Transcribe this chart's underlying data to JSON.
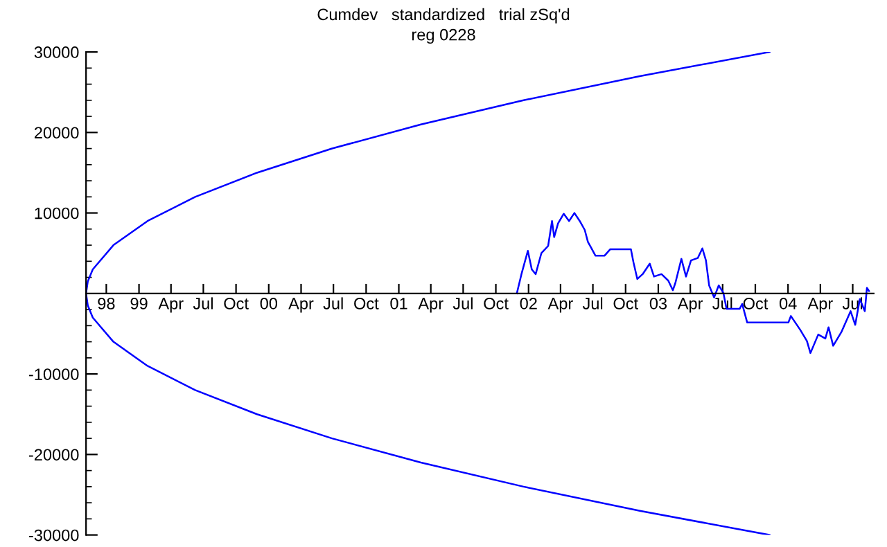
{
  "chart_data": {
    "type": "line",
    "title": "Cumdev   standardized   trial zSq'd",
    "subtitle": "reg 0228",
    "series": [
      {
        "color": "#0000ff",
        "x": [
          "2003-11-10",
          "2002-11-10",
          "2001-12-18",
          "2001-03-04",
          "2000-06-27",
          "1999-11-29",
          "1999-06-08",
          "1999-01-25",
          "1998-10-21",
          "1998-08-24",
          "1998-08-10",
          "1998-08-05",
          "1998-08-10",
          "1998-08-24",
          "1998-10-21",
          "1999-01-25",
          "1999-06-08",
          "1999-11-29",
          "2000-06-27",
          "2001-03-04",
          "2001-12-18",
          "2002-11-10",
          "2003-11-10"
        ],
        "values": [
          30000,
          27000,
          24000,
          21000,
          18000,
          15000,
          12000,
          9000,
          6000,
          3000,
          1500,
          0,
          -1500,
          -3000,
          -6000,
          -9000,
          -12000,
          -15000,
          -18000,
          -21000,
          -24000,
          -27000,
          -30000
        ]
      },
      {
        "color": "#0000ff",
        "x": [
          "2001-11-29",
          "2001-12-12",
          "2001-12-30",
          "2002-01-10",
          "2002-01-21",
          "2002-02-06",
          "2002-02-25",
          "2002-03-08",
          "2002-03-14",
          "2002-03-25",
          "2002-04-10",
          "2002-04-25",
          "2002-05-10",
          "2002-05-25",
          "2002-06-08",
          "2002-06-17",
          "2002-06-27",
          "2002-07-08",
          "2002-08-03",
          "2002-08-19",
          "2002-10-16",
          "2002-10-23",
          "2002-11-03",
          "2002-11-18",
          "2002-12-08",
          "2002-12-20",
          "2003-01-10",
          "2003-01-29",
          "2003-02-11",
          "2003-02-18",
          "2003-03-07",
          "2003-03-20",
          "2003-04-03",
          "2003-04-22",
          "2003-05-05",
          "2003-05-15",
          "2003-05-24",
          "2003-06-07",
          "2003-06-20",
          "2003-07-03",
          "2003-07-12",
          "2003-08-18",
          "2003-08-25",
          "2003-09-08",
          "2004-01-02",
          "2004-01-09",
          "2004-02-04",
          "2004-02-23",
          "2004-03-04",
          "2004-03-26",
          "2004-04-15",
          "2004-04-24",
          "2004-05-07",
          "2004-05-30",
          "2004-06-25",
          "2004-07-08",
          "2004-07-21",
          "2004-08-04",
          "2004-08-10",
          "2004-08-16"
        ],
        "values": [
          0,
          2400,
          5300,
          3000,
          2400,
          5000,
          5900,
          9000,
          7000,
          8700,
          9900,
          9000,
          10000,
          9000,
          7900,
          6400,
          5600,
          4700,
          4700,
          5500,
          5500,
          3900,
          1800,
          2400,
          3700,
          2100,
          2400,
          1600,
          400,
          1300,
          4300,
          2100,
          4100,
          4400,
          5600,
          4100,
          1000,
          -500,
          1000,
          100,
          -1900,
          -1900,
          -1300,
          -3600,
          -3600,
          -2800,
          -4500,
          -5900,
          -7400,
          -5100,
          -5600,
          -4200,
          -6500,
          -4800,
          -2200,
          -3900,
          -700,
          -2200,
          700,
          300
        ]
      }
    ],
    "xlim": [
      "1998-08-05",
      "2004-08-29"
    ],
    "xticks": [
      {
        "value": "1998-10-01",
        "label": "98"
      },
      {
        "value": "1999-01-01",
        "label": "99"
      },
      {
        "value": "1999-04-01",
        "label": "Apr"
      },
      {
        "value": "1999-07-01",
        "label": "Jul"
      },
      {
        "value": "1999-10-01",
        "label": "Oct"
      },
      {
        "value": "2000-01-01",
        "label": "00"
      },
      {
        "value": "2000-04-01",
        "label": "Apr"
      },
      {
        "value": "2000-07-01",
        "label": "Jul"
      },
      {
        "value": "2000-10-01",
        "label": "Oct"
      },
      {
        "value": "2001-01-01",
        "label": "01"
      },
      {
        "value": "2001-04-01",
        "label": "Apr"
      },
      {
        "value": "2001-07-01",
        "label": "Jul"
      },
      {
        "value": "2001-10-01",
        "label": "Oct"
      },
      {
        "value": "2002-01-01",
        "label": "02"
      },
      {
        "value": "2002-04-01",
        "label": "Apr"
      },
      {
        "value": "2002-07-01",
        "label": "Jul"
      },
      {
        "value": "2002-10-01",
        "label": "Oct"
      },
      {
        "value": "2003-01-01",
        "label": "03"
      },
      {
        "value": "2003-04-01",
        "label": "Apr"
      },
      {
        "value": "2003-07-01",
        "label": "Jul"
      },
      {
        "value": "2003-10-01",
        "label": "Oct"
      },
      {
        "value": "2004-01-01",
        "label": "04"
      },
      {
        "value": "2004-04-01",
        "label": "Apr"
      },
      {
        "value": "2004-07-01",
        "label": "Jul"
      }
    ],
    "ylim": [
      -30000,
      30000
    ],
    "yticks": [
      -30000,
      {
        "value": -28000,
        "label": null
      },
      {
        "value": -26000,
        "label": null
      },
      {
        "value": -24000,
        "label": null
      },
      {
        "value": -22000,
        "label": null
      },
      -20000,
      {
        "value": -18000,
        "label": null
      },
      {
        "value": -16000,
        "label": null
      },
      {
        "value": -14000,
        "label": null
      },
      {
        "value": -12000,
        "label": null
      },
      -10000,
      {
        "value": -8000,
        "label": null
      },
      {
        "value": -6000,
        "label": null
      },
      {
        "value": -4000,
        "label": null
      },
      {
        "value": -2000,
        "label": null
      },
      {
        "value": 2000,
        "label": null
      },
      {
        "value": 4000,
        "label": null
      },
      {
        "value": 6000,
        "label": null
      },
      {
        "value": 8000,
        "label": null
      },
      10000,
      {
        "value": 12000,
        "label": null
      },
      {
        "value": 14000,
        "label": null
      },
      {
        "value": 16000,
        "label": null
      },
      {
        "value": 18000,
        "label": null
      },
      20000,
      {
        "value": 22000,
        "label": null
      },
      {
        "value": 24000,
        "label": null
      },
      {
        "value": 26000,
        "label": null
      },
      {
        "value": 28000,
        "label": null
      },
      30000
    ],
    "grid": false,
    "legend": false
  }
}
